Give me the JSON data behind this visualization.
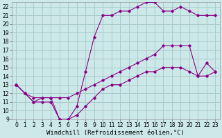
{
  "background_color": "#cce8e8",
  "grid_color": "#aacccc",
  "line_color": "#880088",
  "xlabel": "Windchill (Refroidissement éolien,°C)",
  "xlabel_fontsize": 6.5,
  "xlim": [
    -0.5,
    23.5
  ],
  "ylim": [
    9,
    22.5
  ],
  "xticks": [
    0,
    1,
    2,
    3,
    4,
    5,
    6,
    7,
    8,
    9,
    10,
    11,
    12,
    13,
    14,
    15,
    16,
    17,
    18,
    19,
    20,
    21,
    22,
    23
  ],
  "yticks": [
    9,
    10,
    11,
    12,
    13,
    14,
    15,
    16,
    17,
    18,
    19,
    20,
    21,
    22
  ],
  "tick_fontsize": 5.5,
  "series1_x": [
    0,
    1,
    2,
    3,
    4,
    5,
    6,
    7,
    8,
    9,
    10,
    11,
    12,
    13,
    14,
    15,
    16,
    17,
    18,
    19,
    20,
    21,
    22,
    23
  ],
  "series1_y": [
    13,
    12,
    11,
    11,
    11,
    9,
    9.0,
    10.5,
    14.5,
    18.5,
    21.0,
    21.0,
    21.5,
    21.5,
    22.0,
    22.5,
    22.5,
    21.5,
    21.5,
    22.0,
    21.5,
    21.0,
    21.0,
    21.0
  ],
  "series2_x": [
    0,
    1,
    2,
    3,
    4,
    5,
    6,
    7,
    8,
    9,
    10,
    11,
    12,
    13,
    14,
    15,
    16,
    17,
    18,
    19,
    20,
    21,
    22,
    23
  ],
  "series2_y": [
    13,
    12,
    11.5,
    11.5,
    11.5,
    11.5,
    11.5,
    12.0,
    12.5,
    13.0,
    13.5,
    14.0,
    14.5,
    15.0,
    15.5,
    16.0,
    16.5,
    17.5,
    17.5,
    17.5,
    17.5,
    14.0,
    15.5,
    14.5
  ],
  "series3_x": [
    0,
    1,
    2,
    3,
    4,
    5,
    6,
    7,
    8,
    9,
    10,
    11,
    12,
    13,
    14,
    15,
    16,
    17,
    18,
    19,
    20,
    21,
    22,
    23
  ],
  "series3_y": [
    13,
    12,
    11.0,
    11.5,
    11.5,
    9.0,
    9.0,
    9.5,
    10.5,
    11.5,
    12.5,
    13.0,
    13.0,
    13.5,
    14.0,
    14.5,
    14.5,
    15.0,
    15.0,
    15.0,
    14.5,
    14.0,
    14.0,
    14.5
  ]
}
